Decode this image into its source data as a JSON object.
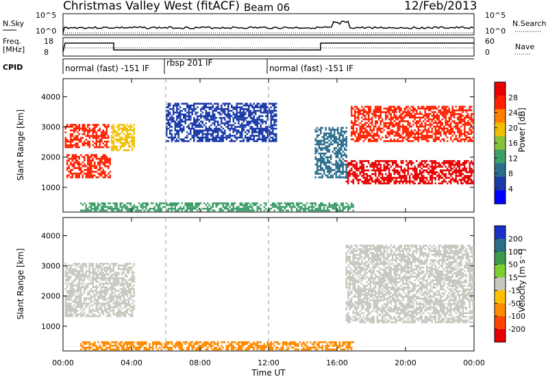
{
  "header": {
    "title": "Christmas Valley West (fitACF)",
    "beam": "Beam 06",
    "date": "12/Feb/2013"
  },
  "top_strip": {
    "nsky_label": "N.Sky",
    "nsky_ticks": [
      "10^5",
      "10^0"
    ],
    "nsearch_label": "N.Search",
    "nsearch_ticks": [
      "10^5",
      "10^0"
    ],
    "freq_label_lines": [
      "Freq.",
      "[MHz]"
    ],
    "freq_ticks": [
      "18",
      "8"
    ],
    "nave_label": "Nave",
    "nave_ticks": [
      "60",
      "0"
    ],
    "cpid_label": "CPID",
    "cpid_segments": [
      "normal (fast) -151 IF",
      "rbsp 201 IF",
      "normal (fast) -151 IF"
    ]
  },
  "colors": {
    "power_scale": [
      "#0000ff",
      "#1a3aa8",
      "#2c6e8e",
      "#3e9e6a",
      "#88c23a",
      "#f0c000",
      "#ff8000",
      "#ff2000",
      "#e80000"
    ],
    "velocity_scale": [
      "#1a30c8",
      "#2a6e88",
      "#3c9a4a",
      "#7cd030",
      "#c8c8c0",
      "#ffc000",
      "#ff8a00",
      "#ff4400",
      "#e80000"
    ],
    "ground_grey": "#c8c8c0"
  },
  "chart_data": [
    {
      "type": "heatmap",
      "panel": "power",
      "title": "",
      "xlabel": "Time UT",
      "ylabel": "Slant Range [km]",
      "x_ticks": [
        "00:00",
        "04:00",
        "08:00",
        "12:00",
        "16:00",
        "20:00",
        "00:00"
      ],
      "y_ticks": [
        "1000",
        "2000",
        "3000",
        "4000"
      ],
      "xlim_hours": [
        0,
        24
      ],
      "ylim_km": [
        180,
        4600
      ],
      "colorbar_label": "Power [dB]",
      "colorbar_ticks": [
        "28",
        "24",
        "20",
        "16",
        "12",
        "8",
        "4"
      ],
      "colorbar_range": [
        0,
        30
      ],
      "regions": [
        {
          "name": "early-lower-band",
          "t_start": 0.2,
          "t_end": 2.8,
          "r_start": 1300,
          "r_end": 2100,
          "power": 26
        },
        {
          "name": "early-upper-band",
          "t_start": 0.1,
          "t_end": 2.7,
          "r_start": 2300,
          "r_end": 3100,
          "power": 25
        },
        {
          "name": "cusp-feature",
          "t_start": 2.8,
          "t_end": 4.2,
          "r_start": 2200,
          "r_end": 3100,
          "power": 18
        },
        {
          "name": "scattered-mid",
          "t_start": 6.0,
          "t_end": 12.5,
          "r_start": 2500,
          "r_end": 3800,
          "power": 6
        },
        {
          "name": "dusk-lower-band",
          "t_start": 16.5,
          "t_end": 24.0,
          "r_start": 1100,
          "r_end": 1900,
          "power": 27
        },
        {
          "name": "dusk-upper-band",
          "t_start": 16.8,
          "t_end": 24.0,
          "r_start": 2500,
          "r_end": 3700,
          "power": 26
        },
        {
          "name": "transition-feature",
          "t_start": 14.7,
          "t_end": 16.6,
          "r_start": 1300,
          "r_end": 3000,
          "power": 8
        },
        {
          "name": "ground-near-range",
          "t_start": 1.0,
          "t_end": 17.0,
          "r_start": 200,
          "r_end": 500,
          "power": 10
        }
      ]
    },
    {
      "type": "heatmap",
      "panel": "velocity",
      "title": "",
      "xlabel": "Time UT",
      "ylabel": "Slant Range [km]",
      "x_ticks": [
        "00:00",
        "04:00",
        "08:00",
        "12:00",
        "16:00",
        "20:00",
        "00:00"
      ],
      "y_ticks": [
        "1000",
        "2000",
        "3000",
        "4000"
      ],
      "xlim_hours": [
        0,
        24
      ],
      "ylim_km": [
        180,
        4600
      ],
      "colorbar_label": "Velocity [m s⁻¹]",
      "colorbar_ticks": [
        "200",
        "100",
        "50",
        "15",
        "-15",
        "-50",
        "-100",
        "-200"
      ],
      "colorbar_range": [
        -250,
        250
      ],
      "regions": [
        {
          "name": "early-ground-scatter",
          "t_start": 0.1,
          "t_end": 4.2,
          "r_start": 1300,
          "r_end": 3100,
          "velocity": 0
        },
        {
          "name": "dusk-ground-scatter",
          "t_start": 16.5,
          "t_end": 24.0,
          "r_start": 1100,
          "r_end": 3700,
          "velocity": 0
        },
        {
          "name": "near-range-flows",
          "t_start": 1.0,
          "t_end": 17.0,
          "r_start": 200,
          "r_end": 500,
          "velocity": -80
        }
      ]
    }
  ]
}
